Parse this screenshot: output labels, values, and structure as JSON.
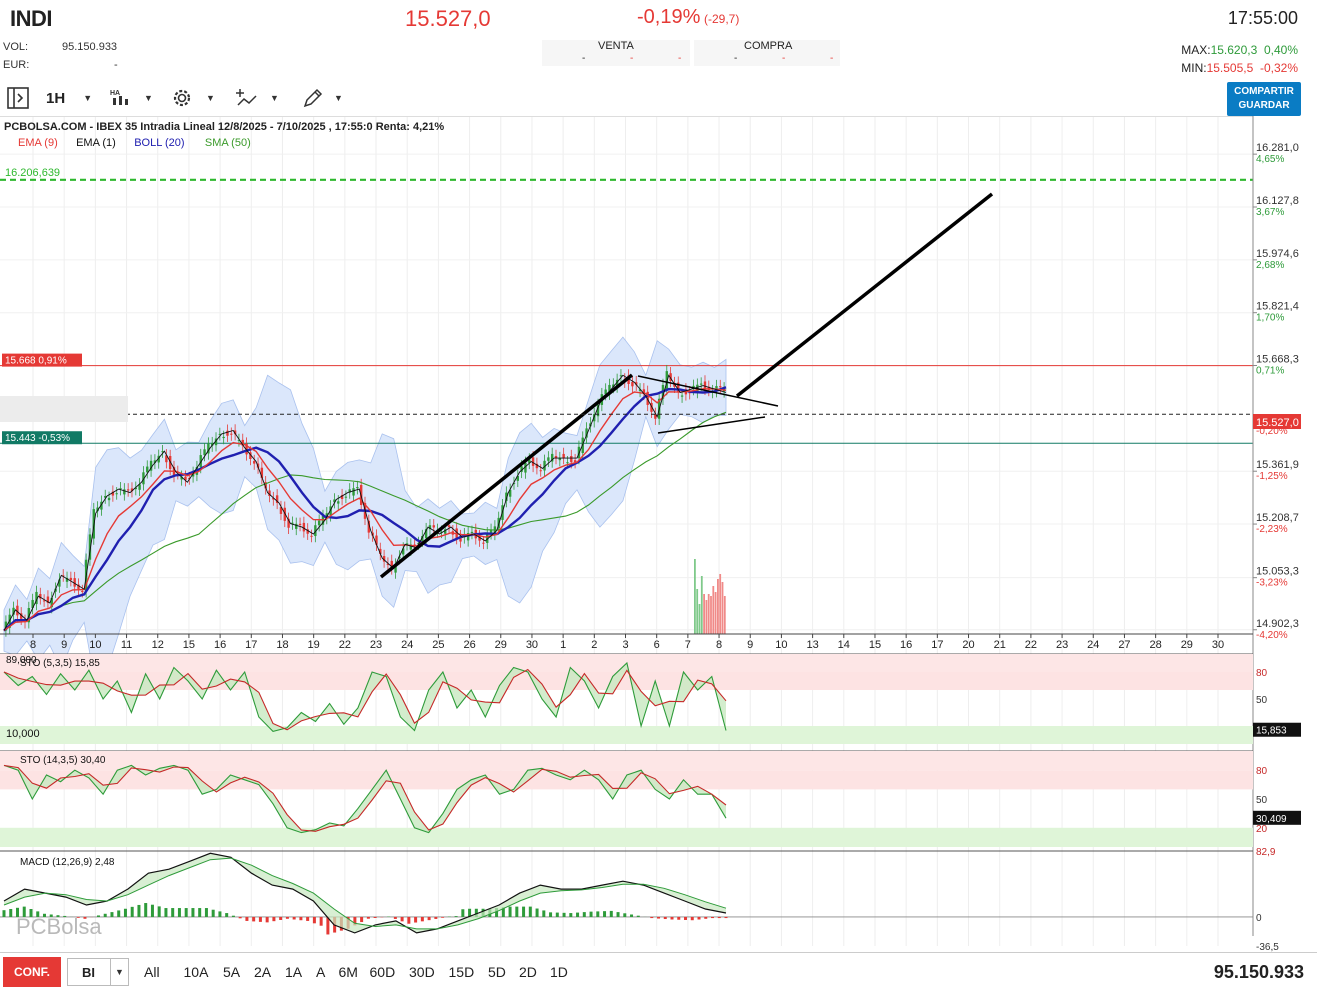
{
  "header": {
    "symbol": "INDI",
    "price": "15.527,0",
    "change_pct": "-0,19%",
    "change_pts": "(-29,7)",
    "time": "17:55:00",
    "vol_label": "VOL:",
    "vol_value": "95.150.933",
    "eur_label": "EUR:",
    "eur_value": "-",
    "venta_label": "VENTA",
    "compra_label": "COMPRA",
    "venta_cells": [
      "-",
      "-",
      "-"
    ],
    "compra_cells": [
      "-",
      "-",
      "-"
    ],
    "max_label": "MAX:",
    "max_value": "15.620,3",
    "max_pct": "0,40%",
    "min_label": "MIN:",
    "min_value": "15.505,5",
    "min_pct": "-0,32%"
  },
  "toolbar": {
    "interval": "1H",
    "share_line1": "COMPARTIR",
    "share_line2": "GUARDAR",
    "icons": [
      "panel-toggle-icon",
      "candle-type-icon",
      "gear-icon",
      "indicators-icon",
      "drawing-pencil-icon"
    ]
  },
  "colors": {
    "up": "#2e9b3a",
    "down": "#e53935",
    "ema9": "#e53935",
    "ema1": "#111111",
    "boll": "#2020b0",
    "sma50": "#3a9a2a",
    "accent": "#0a7cc4"
  },
  "chart_data": [
    {
      "type": "line",
      "title": "PCBOLSA.COM - IBEX 35 Intradia Lineal 12/8/2025 - 7/10/2025 , 17:55:0 Renta: 4,21%",
      "legend": [
        {
          "name": "EMA (9)",
          "color": "#e53935"
        },
        {
          "name": "EMA (1)",
          "color": "#111111"
        },
        {
          "name": "BOLL (20)",
          "color": "#2020b0"
        },
        {
          "name": "SMA (50)",
          "color": "#3a9a2a"
        }
      ],
      "x_ticks": [
        "8",
        "9",
        "10",
        "11",
        "12",
        "15",
        "16",
        "17",
        "18",
        "19",
        "22",
        "23",
        "24",
        "25",
        "26",
        "29",
        "30",
        "1",
        "2",
        "3",
        "6",
        "7",
        "8",
        "9",
        "10",
        "13",
        "14",
        "15",
        "16",
        "17",
        "20",
        "21",
        "22",
        "23",
        "24",
        "27",
        "28",
        "29",
        "30"
      ],
      "y_ticks": [
        {
          "value": "16.281,0",
          "pct": "4,65%"
        },
        {
          "value": "16.127,8",
          "pct": "3,67%"
        },
        {
          "value": "15.974,6",
          "pct": "2,68%"
        },
        {
          "value": "15.821,4",
          "pct": "1,70%"
        },
        {
          "value": "15.668,3",
          "pct": "0,71%"
        },
        {
          "value": "15.361,9",
          "pct": "-1,25%"
        },
        {
          "value": "15.208,7",
          "pct": "-2,23%"
        },
        {
          "value": "15.053,3",
          "pct": "-3,23%"
        },
        {
          "value": "14.902,3",
          "pct": "-4,20%"
        }
      ],
      "ylim": [
        14890,
        16380
      ],
      "price_series": [
        14900,
        14960,
        14930,
        15000,
        14980,
        15060,
        15040,
        15020,
        15240,
        15290,
        15310,
        15300,
        15330,
        15380,
        15420,
        15360,
        15330,
        15380,
        15430,
        15470,
        15480,
        15430,
        15390,
        15300,
        15270,
        15210,
        15200,
        15180,
        15220,
        15280,
        15300,
        15310,
        15190,
        15110,
        15080,
        15150,
        15140,
        15200,
        15180,
        15200,
        15170,
        15180,
        15160,
        15190,
        15300,
        15360,
        15390,
        15370,
        15400,
        15400,
        15400,
        15480,
        15560,
        15600,
        15640,
        15620,
        15580,
        15520,
        15640,
        15590,
        15600,
        15610,
        15600,
        15590
      ],
      "current_price": "15.527,0",
      "current_pct": "-0,20%",
      "horizontal_levels": [
        {
          "label": "16.206,639",
          "value": 16206.6,
          "color": "#2eb82e",
          "style": "dashed"
        },
        {
          "label": "15.668 0,91%",
          "value": 15668,
          "color": "#e53935"
        },
        {
          "label": "15.443 -0,53%",
          "value": 15443,
          "color": "#117a65"
        }
      ]
    },
    {
      "type": "line",
      "title": "STO (5,3,5)",
      "value_label": "15,85",
      "scale_label_top": "89,000",
      "scale_label_bottom": "10,000",
      "y_ticks": [
        "80",
        "50"
      ],
      "current_value": "15,853",
      "values": [
        80,
        65,
        75,
        55,
        78,
        60,
        82,
        50,
        70,
        35,
        78,
        50,
        85,
        70,
        50,
        82,
        60,
        80,
        30,
        14,
        18,
        35,
        25,
        45,
        22,
        40,
        80,
        75,
        30,
        15,
        60,
        80,
        40,
        60,
        30,
        65,
        85,
        80,
        50,
        30,
        85,
        70,
        40,
        75,
        90,
        20,
        70,
        20,
        80,
        60,
        75,
        15
      ]
    },
    {
      "type": "line",
      "title": "STO (14,3,5)",
      "value_label": "30,40",
      "y_ticks": [
        "80",
        "50",
        "20"
      ],
      "current_value": "30,409",
      "values": [
        85,
        80,
        50,
        75,
        68,
        80,
        72,
        55,
        80,
        85,
        75,
        82,
        85,
        80,
        55,
        60,
        75,
        70,
        65,
        45,
        20,
        15,
        18,
        25,
        22,
        40,
        60,
        80,
        50,
        20,
        15,
        35,
        60,
        70,
        75,
        55,
        60,
        80,
        82,
        75,
        70,
        80,
        70,
        50,
        75,
        80,
        60,
        50,
        70,
        55,
        55,
        30
      ]
    },
    {
      "type": "bar",
      "title": "MACD (12,26,9)",
      "value_label": "2,48",
      "y_ticks": [
        "82,9",
        "0",
        "-36,5"
      ],
      "macd_line": [
        20,
        35,
        30,
        25,
        15,
        20,
        35,
        55,
        60,
        70,
        80,
        75,
        55,
        40,
        35,
        20,
        -10,
        -20,
        -10,
        -5,
        -20,
        -15,
        -5,
        5,
        15,
        30,
        40,
        35,
        35,
        40,
        45,
        40,
        30,
        20,
        10,
        5
      ],
      "signal_line": [
        15,
        25,
        30,
        28,
        22,
        20,
        28,
        40,
        52,
        62,
        72,
        74,
        65,
        52,
        42,
        30,
        10,
        -8,
        -12,
        -10,
        -15,
        -15,
        -10,
        -2,
        8,
        20,
        30,
        33,
        34,
        37,
        41,
        41,
        36,
        28,
        19,
        11
      ]
    }
  ],
  "bottom": {
    "conf_label": "CONF.",
    "bi_label": "BI",
    "periods": [
      "All",
      "10A",
      "5A",
      "2A",
      "1A",
      "A",
      "6M",
      "60D",
      "30D",
      "15D",
      "5D",
      "2D",
      "1D"
    ],
    "total_volume": "95.150.933",
    "watermark": "PCBolsa"
  }
}
